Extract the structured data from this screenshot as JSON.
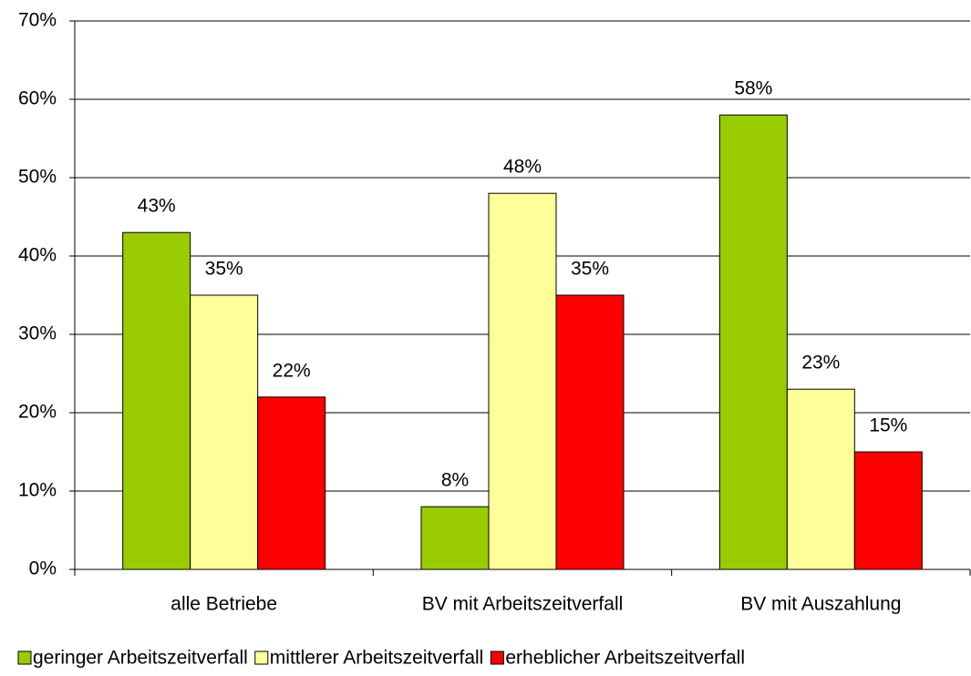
{
  "chart_data": {
    "type": "bar",
    "categories": [
      "alle Betriebe",
      "BV mit Arbeitszeitverfall",
      "BV mit Auszahlung"
    ],
    "series": [
      {
        "name": "geringer Arbeitszeitverfall",
        "color": "#99cc00",
        "values": [
          43,
          8,
          58
        ],
        "value_labels": [
          "43%",
          "8%",
          "58%"
        ]
      },
      {
        "name": "mittlerer Arbeitszeitverfall",
        "color": "#ffff99",
        "values": [
          35,
          48,
          23
        ],
        "value_labels": [
          "35%",
          "48%",
          "23%"
        ]
      },
      {
        "name": "erheblicher Arbeitszeitverfall",
        "color": "#ff0000",
        "values": [
          22,
          35,
          15
        ],
        "value_labels": [
          "22%",
          "35%",
          "15%"
        ]
      }
    ],
    "ylim": [
      0,
      70
    ],
    "yticks": [
      {
        "value": 0,
        "label": "0%"
      },
      {
        "value": 10,
        "label": "10%"
      },
      {
        "value": 20,
        "label": "20%"
      },
      {
        "value": 30,
        "label": "30%"
      },
      {
        "value": 40,
        "label": "40%"
      },
      {
        "value": 50,
        "label": "50%"
      },
      {
        "value": 60,
        "label": "60%"
      },
      {
        "value": 70,
        "label": "70%"
      }
    ],
    "grid": true,
    "legend": "bottom"
  }
}
